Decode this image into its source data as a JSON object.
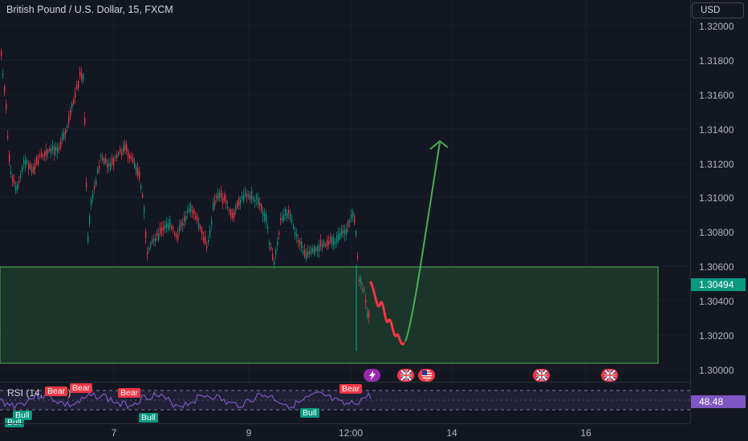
{
  "header": {
    "symbol_title": "British Pound / U.S. Dollar, 15, FXCM",
    "currency": "USD"
  },
  "price_axis": {
    "ticks": [
      "1.32000",
      "1.31800",
      "1.31600",
      "1.31400",
      "1.31200",
      "1.31000",
      "1.30800",
      "1.30600",
      "1.30400",
      "1.30200",
      "1.30000"
    ],
    "current_price": "1.30494",
    "rsi_value": "48.48"
  },
  "time_axis": {
    "labels": [
      "7",
      "9",
      "12:00",
      "14",
      "16"
    ]
  },
  "rsi": {
    "title": "RSI (14, close)",
    "signals": [
      {
        "type": "bear",
        "label": "Bear"
      },
      {
        "type": "bear",
        "label": "Bear"
      },
      {
        "type": "bear",
        "label": "Bear"
      },
      {
        "type": "bear",
        "label": "Bear"
      },
      {
        "type": "bull",
        "label": "Bull"
      },
      {
        "type": "bull",
        "label": "Bull"
      },
      {
        "type": "bull",
        "label": "Bull"
      },
      {
        "type": "bull",
        "label": "Bull"
      }
    ]
  },
  "events": [
    {
      "kind": "bolt",
      "icon": "lightning-icon"
    },
    {
      "kind": "flag",
      "icon": "uk-flag-icon"
    },
    {
      "kind": "flag",
      "icon": "us-flag-icon"
    },
    {
      "kind": "flag",
      "icon": "uk-flag-icon"
    },
    {
      "kind": "flag",
      "icon": "uk-flag-icon"
    }
  ],
  "colors": {
    "background": "#131722",
    "up": "#089981",
    "down": "#f23645",
    "zone_fill": "#1b3a2a",
    "zone_border": "#4caf50",
    "projection": "#4caf50",
    "rsi_line": "#7e57c2"
  }
}
